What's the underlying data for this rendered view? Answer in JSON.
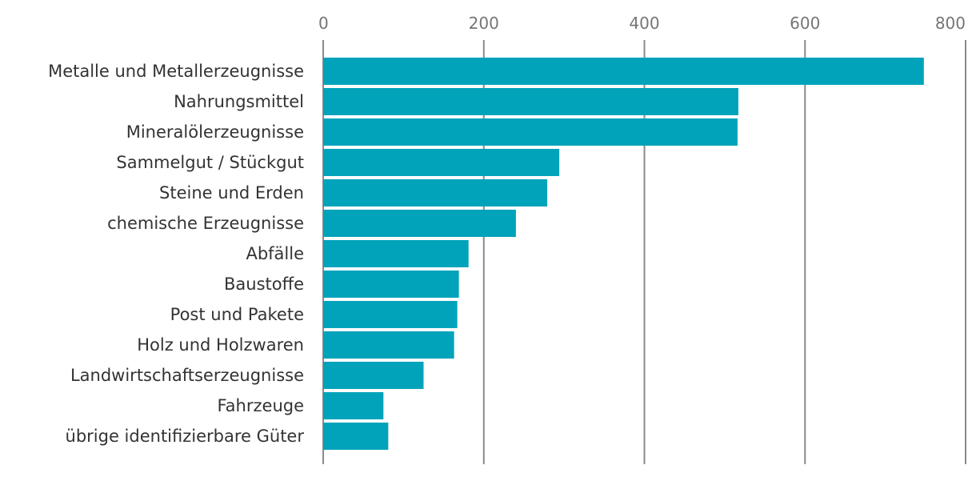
{
  "chart_data": {
    "type": "bar",
    "orientation": "horizontal",
    "title": "",
    "xlabel": "",
    "ylabel": "",
    "xlim": [
      0,
      800
    ],
    "x_ticks": [
      0,
      200,
      400,
      600,
      800
    ],
    "x_tick_labels": [
      "0",
      "200",
      "400",
      "600",
      "800"
    ],
    "grid": true,
    "legend": "none",
    "bar_color": "#00a3ba",
    "categories": [
      "Metalle und Metallerzeugnisse",
      "Nahrungsmittel",
      "Mineralölerzeugnisse",
      "Sammelgut / Stückgut",
      "Steine und Erden",
      "chemische Erzeugnisse",
      "Abfälle",
      "Baustoffe",
      "Post und Pakete",
      "Holz und Holzwaren",
      "Landwirtschaftserzeugnisse",
      "Fahrzeuge",
      "übrige identifizierbare Güter"
    ],
    "values": [
      748,
      517,
      516,
      294,
      279,
      240,
      181,
      169,
      167,
      163,
      125,
      75,
      81
    ]
  }
}
